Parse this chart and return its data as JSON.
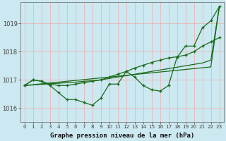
{
  "background_color": "#cce8f0",
  "grid_color": "#e8b8b8",
  "line_color": "#1a6b1a",
  "title": "Graphe pression niveau de la mer (hPa)",
  "xlim": [
    -0.5,
    23.5
  ],
  "ylim": [
    1015.5,
    1019.75
  ],
  "yticks": [
    1016,
    1017,
    1018,
    1019
  ],
  "xticks": [
    0,
    1,
    2,
    3,
    4,
    5,
    6,
    7,
    8,
    9,
    10,
    11,
    12,
    13,
    14,
    15,
    16,
    17,
    18,
    19,
    20,
    21,
    22,
    23
  ],
  "line1_y": [
    1016.8,
    1017.0,
    1016.95,
    1016.8,
    1016.55,
    1016.3,
    1016.3,
    1016.2,
    1016.1,
    1016.35,
    1016.85,
    1016.85,
    1017.3,
    1017.1,
    1016.8,
    1016.65,
    1016.6,
    1016.8,
    1017.8,
    1018.2,
    1018.2,
    1018.85,
    1019.1,
    1019.6
  ],
  "line2_y": [
    1016.8,
    1017.0,
    1016.95,
    1016.85,
    1016.8,
    1016.8,
    1016.85,
    1016.9,
    1016.95,
    1017.0,
    1017.1,
    1017.2,
    1017.3,
    1017.42,
    1017.52,
    1017.62,
    1017.7,
    1017.78,
    1017.82,
    1017.88,
    1018.0,
    1018.2,
    1018.35,
    1018.5
  ],
  "line3_y": [
    1016.8,
    1016.83,
    1016.86,
    1016.89,
    1016.92,
    1016.95,
    1016.98,
    1017.01,
    1017.04,
    1017.07,
    1017.1,
    1017.13,
    1017.16,
    1017.19,
    1017.22,
    1017.25,
    1017.28,
    1017.31,
    1017.34,
    1017.37,
    1017.4,
    1017.43,
    1017.46,
    1019.6
  ],
  "line4_y": [
    1016.8,
    1016.82,
    1016.84,
    1016.86,
    1016.88,
    1016.9,
    1016.92,
    1016.95,
    1016.97,
    1017.0,
    1017.05,
    1017.1,
    1017.15,
    1017.2,
    1017.25,
    1017.3,
    1017.35,
    1017.4,
    1017.45,
    1017.5,
    1017.55,
    1017.6,
    1017.7,
    1019.6
  ]
}
